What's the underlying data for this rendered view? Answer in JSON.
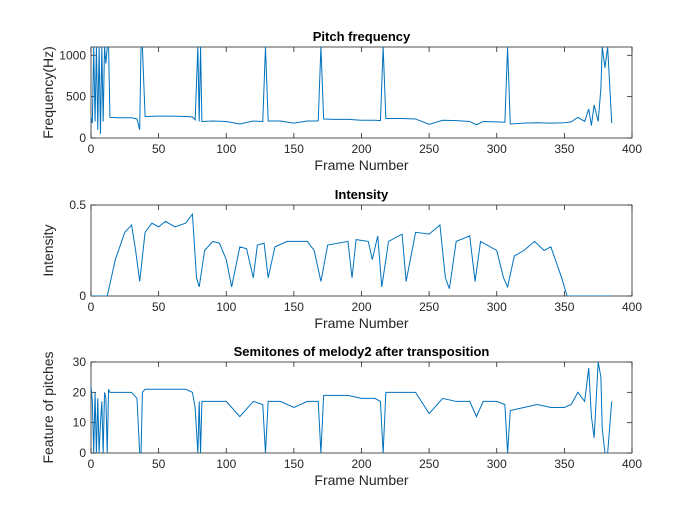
{
  "chart_data": [
    {
      "type": "line",
      "title": "Pitch frequency",
      "xlabel": "Frame Number",
      "ylabel": "Frequency(Hz)",
      "color": "#0072bd",
      "xlim": [
        0,
        400
      ],
      "ylim": [
        0,
        1100
      ],
      "xticks": [
        0,
        50,
        100,
        150,
        200,
        250,
        300,
        350,
        400
      ],
      "yticks": [
        0,
        500,
        1000
      ],
      "x": [
        0,
        1,
        2,
        3,
        4,
        5,
        6,
        7,
        8,
        9,
        10,
        11,
        12,
        13,
        14,
        20,
        30,
        34,
        36,
        37,
        38,
        40,
        50,
        60,
        70,
        75,
        77,
        79,
        80,
        81,
        82,
        90,
        100,
        110,
        120,
        127,
        129,
        131,
        140,
        150,
        160,
        168,
        170,
        172,
        180,
        190,
        200,
        210,
        214,
        216,
        218,
        230,
        240,
        250,
        260,
        270,
        280,
        285,
        290,
        300,
        306,
        308,
        310,
        320,
        330,
        340,
        350,
        355,
        360,
        365,
        368,
        370,
        372,
        375,
        377,
        378,
        380,
        382,
        385
      ],
      "values": [
        250,
        180,
        1100,
        200,
        1100,
        100,
        1100,
        50,
        1100,
        200,
        1100,
        900,
        1100,
        1100,
        250,
        245,
        245,
        230,
        100,
        1100,
        1100,
        260,
        265,
        265,
        260,
        255,
        220,
        1100,
        200,
        1100,
        200,
        205,
        200,
        170,
        205,
        200,
        1100,
        205,
        205,
        180,
        205,
        205,
        1100,
        230,
        225,
        225,
        215,
        215,
        210,
        1100,
        235,
        235,
        230,
        165,
        215,
        210,
        200,
        160,
        200,
        195,
        190,
        1100,
        170,
        180,
        185,
        180,
        185,
        195,
        250,
        200,
        350,
        150,
        400,
        200,
        600,
        1100,
        850,
        1100,
        180
      ]
    },
    {
      "type": "line",
      "title": "Intensity",
      "xlabel": "Frame Number",
      "ylabel": "Intensity",
      "color": "#0072bd",
      "xlim": [
        0,
        400
      ],
      "ylim": [
        0,
        0.5
      ],
      "xticks": [
        0,
        50,
        100,
        150,
        200,
        250,
        300,
        350,
        400
      ],
      "yticks": [
        0,
        0.5
      ],
      "x": [
        0,
        12,
        18,
        25,
        30,
        33,
        36,
        40,
        45,
        50,
        55,
        62,
        70,
        75,
        78,
        80,
        84,
        90,
        95,
        100,
        104,
        110,
        115,
        120,
        123,
        128,
        131,
        136,
        145,
        160,
        165,
        170,
        175,
        190,
        193,
        196,
        205,
        208,
        212,
        215,
        220,
        230,
        233,
        240,
        250,
        258,
        262,
        265,
        270,
        280,
        284,
        288,
        300,
        305,
        308,
        313,
        320,
        328,
        335,
        340,
        348,
        352,
        385
      ],
      "values": [
        0,
        0,
        0.2,
        0.35,
        0.39,
        0.25,
        0.08,
        0.35,
        0.4,
        0.38,
        0.41,
        0.38,
        0.4,
        0.45,
        0.1,
        0.05,
        0.25,
        0.3,
        0.29,
        0.2,
        0.05,
        0.27,
        0.26,
        0.1,
        0.28,
        0.29,
        0.1,
        0.27,
        0.3,
        0.3,
        0.25,
        0.08,
        0.28,
        0.3,
        0.1,
        0.31,
        0.3,
        0.2,
        0.33,
        0.05,
        0.3,
        0.34,
        0.08,
        0.35,
        0.34,
        0.39,
        0.1,
        0.04,
        0.3,
        0.33,
        0.08,
        0.3,
        0.25,
        0.1,
        0.05,
        0.22,
        0.25,
        0.3,
        0.25,
        0.27,
        0.1,
        0,
        0
      ]
    },
    {
      "type": "line",
      "title": "Semitones of melody2 after transposition",
      "xlabel": "Frame Number",
      "ylabel": "Feature of pitches",
      "color": "#0072bd",
      "xlim": [
        0,
        400
      ],
      "ylim": [
        0,
        30
      ],
      "xticks": [
        0,
        50,
        100,
        150,
        200,
        250,
        300,
        350,
        400
      ],
      "yticks": [
        0,
        10,
        20,
        30
      ],
      "x": [
        0,
        1,
        2,
        3,
        4,
        5,
        6,
        7,
        8,
        9,
        10,
        11,
        12,
        13,
        14,
        20,
        30,
        34,
        36,
        37,
        38,
        40,
        50,
        60,
        70,
        75,
        77,
        79,
        80,
        81,
        82,
        90,
        100,
        110,
        120,
        127,
        129,
        131,
        140,
        150,
        160,
        168,
        170,
        172,
        180,
        190,
        200,
        210,
        214,
        216,
        218,
        230,
        240,
        250,
        260,
        270,
        280,
        285,
        290,
        300,
        306,
        308,
        310,
        320,
        330,
        340,
        350,
        355,
        360,
        365,
        368,
        370,
        372,
        375,
        377,
        378,
        380,
        382,
        385
      ],
      "values": [
        22,
        17,
        0,
        20,
        0,
        18,
        0,
        10,
        17,
        0,
        20,
        18,
        0,
        21,
        20,
        20,
        20,
        18,
        0,
        0,
        20,
        21,
        21,
        21,
        21,
        20,
        15,
        0,
        17,
        0,
        17,
        17,
        17,
        12,
        17,
        16,
        0,
        17,
        17,
        15,
        17,
        17,
        0,
        19,
        19,
        19,
        18,
        18,
        17,
        0,
        20,
        20,
        20,
        13,
        18,
        17,
        17,
        12,
        17,
        17,
        16,
        0,
        14,
        15,
        16,
        15,
        15,
        16,
        20,
        17,
        28,
        12,
        5,
        30,
        25,
        8,
        0,
        0,
        17
      ]
    }
  ]
}
